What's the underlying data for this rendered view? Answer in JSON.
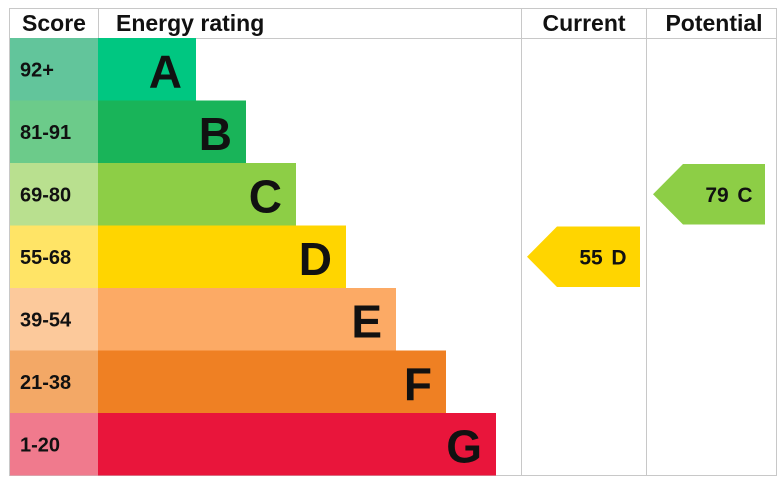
{
  "header": {
    "score": "Score",
    "rating": "Energy rating",
    "current": "Current",
    "potential": "Potential"
  },
  "bands": [
    {
      "score": "92+",
      "letter": "A",
      "color": "#00c781",
      "score_color": "#62c59b"
    },
    {
      "score": "81-91",
      "letter": "B",
      "color": "#19b459",
      "score_color": "#6ccb8a"
    },
    {
      "score": "69-80",
      "letter": "C",
      "color": "#8dce46",
      "score_color": "#b9e08f"
    },
    {
      "score": "55-68",
      "letter": "D",
      "color": "#ffd500",
      "score_color": "#ffe466"
    },
    {
      "score": "39-54",
      "letter": "E",
      "color": "#fcaa65",
      "score_color": "#fcc99b"
    },
    {
      "score": "21-38",
      "letter": "F",
      "color": "#ef8023",
      "score_color": "#f3a866"
    },
    {
      "score": "1-20",
      "letter": "G",
      "color": "#e9153b",
      "score_color": "#f07a8d"
    }
  ],
  "current": {
    "value": 55,
    "letter": "D"
  },
  "potential": {
    "value": 79,
    "letter": "C"
  }
}
